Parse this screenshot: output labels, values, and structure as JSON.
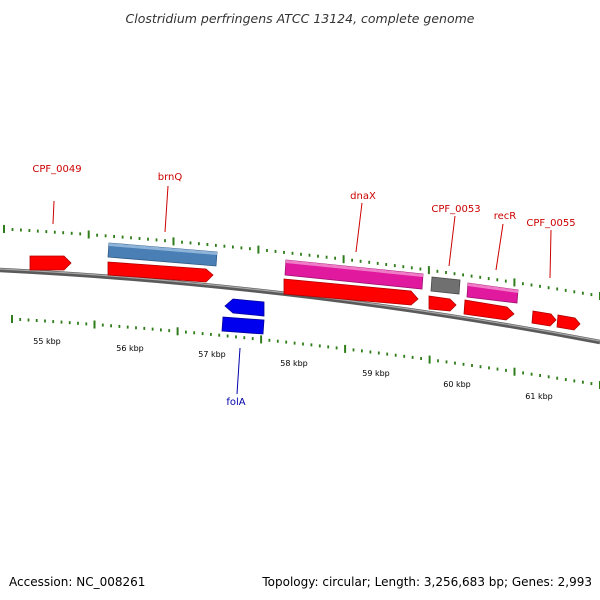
{
  "title": "Clostridium perfringens ATCC 13124, complete genome",
  "footer": {
    "accession": "Accession: NC_008261",
    "summary": "Topology: circular; Length: 3,256,683 bp; Genes: 2,993"
  },
  "colors": {
    "label_red": "#cc0000",
    "label_blue": "#0000aa",
    "tick_green": "#2e7d1a",
    "backbone_gray": "#888888",
    "gene_red": "#ff0000",
    "gene_steelblue": "#4a7fb5",
    "gene_magenta": "#e0199e",
    "gene_gray": "#707070",
    "gene_blue": "#0000ee"
  },
  "scale": {
    "labels": [
      "55 kbp",
      "56 kbp",
      "57 kbp",
      "58 kbp",
      "59 kbp",
      "60 kbp",
      "61 kbp"
    ]
  },
  "genes": [
    {
      "label": "CPF_0049",
      "strand": "+",
      "color": "gene_red"
    },
    {
      "label": "brnQ",
      "strand": "+",
      "color": "gene_steelblue"
    },
    {
      "label": "dnaX",
      "strand": "+",
      "color": "gene_magenta"
    },
    {
      "label": "CPF_0053",
      "strand": "+",
      "color": "gene_gray"
    },
    {
      "label": "recR",
      "strand": "+",
      "color": "gene_magenta"
    },
    {
      "label": "CPF_0055",
      "strand": "+",
      "color": "gene_red"
    },
    {
      "label": "folA",
      "strand": "-",
      "color": "gene_blue"
    }
  ]
}
